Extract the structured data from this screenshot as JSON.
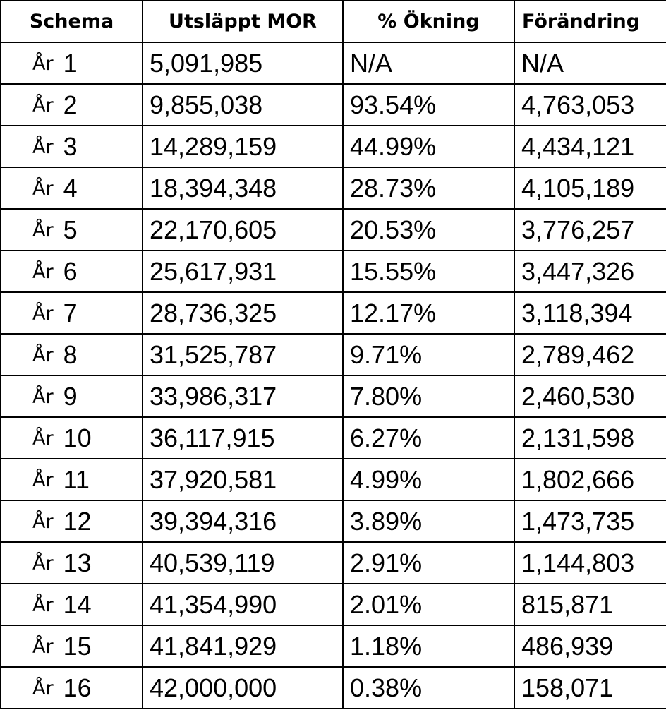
{
  "table": {
    "headers": [
      "Schema",
      "Utsläppt MOR",
      "% Ökning",
      "Förändring"
    ],
    "rows": [
      {
        "year_label": "År",
        "year": "1",
        "released": "5,091,985",
        "increase": "N/A",
        "change": "N/A"
      },
      {
        "year_label": "År",
        "year": "2",
        "released": "9,855,038",
        "increase": "93.54%",
        "change": "4,763,053"
      },
      {
        "year_label": "År",
        "year": "3",
        "released": "14,289,159",
        "increase": "44.99%",
        "change": "4,434,121"
      },
      {
        "year_label": "År",
        "year": "4",
        "released": "18,394,348",
        "increase": "28.73%",
        "change": "4,105,189"
      },
      {
        "year_label": "År",
        "year": "5",
        "released": "22,170,605",
        "increase": "20.53%",
        "change": "3,776,257"
      },
      {
        "year_label": "År",
        "year": "6",
        "released": "25,617,931",
        "increase": "15.55%",
        "change": "3,447,326"
      },
      {
        "year_label": "År",
        "year": "7",
        "released": "28,736,325",
        "increase": "12.17%",
        "change": "3,118,394"
      },
      {
        "year_label": "År",
        "year": "8",
        "released": "31,525,787",
        "increase": "9.71%",
        "change": "2,789,462"
      },
      {
        "year_label": "År",
        "year": "9",
        "released": "33,986,317",
        "increase": "7.80%",
        "change": "2,460,530"
      },
      {
        "year_label": "År",
        "year": "10",
        "released": "36,117,915",
        "increase": "6.27%",
        "change": "2,131,598"
      },
      {
        "year_label": "År",
        "year": "11",
        "released": "37,920,581",
        "increase": "4.99%",
        "change": "1,802,666"
      },
      {
        "year_label": "År",
        "year": "12",
        "released": "39,394,316",
        "increase": "3.89%",
        "change": "1,473,735"
      },
      {
        "year_label": "År",
        "year": "13",
        "released": "40,539,119",
        "increase": "2.91%",
        "change": "1,144,803"
      },
      {
        "year_label": "År",
        "year": "14",
        "released": "41,354,990",
        "increase": "2.01%",
        "change": "815,871"
      },
      {
        "year_label": "År",
        "year": "15",
        "released": "41,841,929",
        "increase": "1.18%",
        "change": "486,939"
      },
      {
        "year_label": "År",
        "year": "16",
        "released": "42,000,000",
        "increase": "0.38%",
        "change": "158,071"
      }
    ]
  }
}
